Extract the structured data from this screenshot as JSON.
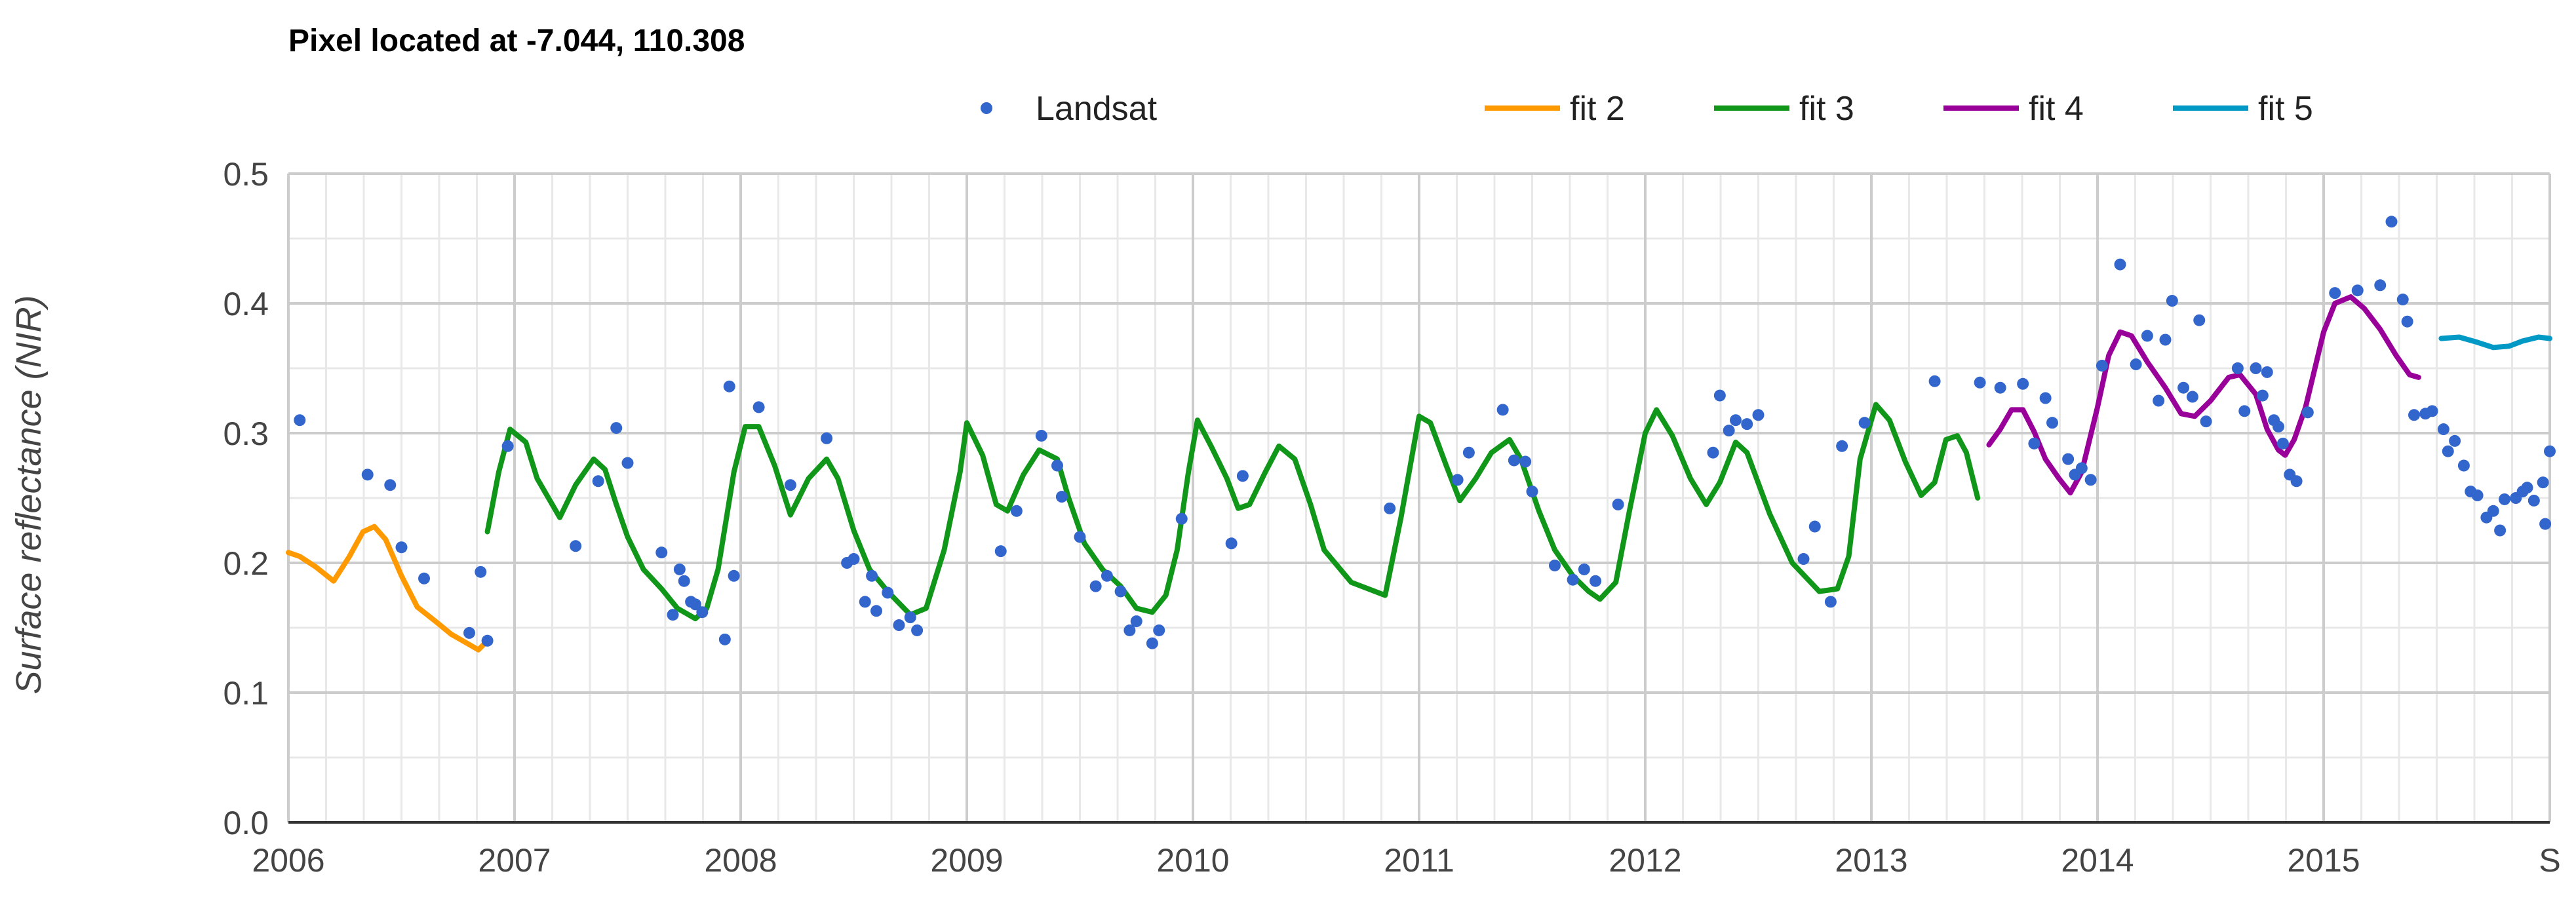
{
  "chart_data": {
    "type": "line",
    "title": "Pixel located at -7.044, 110.308",
    "xlabel": "",
    "ylabel": "Surface reflectance (NIR)",
    "x_tick_labels": [
      "2006",
      "2007",
      "2008",
      "2009",
      "2010",
      "2011",
      "2012",
      "2013",
      "2014",
      "2015",
      "S"
    ],
    "y_tick_labels": [
      "0.0",
      "0.1",
      "0.2",
      "0.3",
      "0.4",
      "0.5"
    ],
    "ylim": [
      0,
      0.5
    ],
    "xlim": [
      2006,
      2016.0
    ],
    "grid": true,
    "legend_position": "top",
    "colors": {
      "Landsat": "#3366cc",
      "fit 2": "#ff9900",
      "fit 3": "#109618",
      "fit 4": "#990099",
      "fit 5": "#0099c6"
    },
    "series": [
      {
        "name": "Landsat",
        "kind": "scatter",
        "points": [
          [
            2006.05,
            0.31
          ],
          [
            2006.35,
            0.268
          ],
          [
            2006.45,
            0.26
          ],
          [
            2006.5,
            0.212
          ],
          [
            2006.6,
            0.188
          ],
          [
            2006.8,
            0.146
          ],
          [
            2006.85,
            0.193
          ],
          [
            2006.88,
            0.14
          ],
          [
            2006.97,
            0.29
          ],
          [
            2007.27,
            0.213
          ],
          [
            2007.37,
            0.263
          ],
          [
            2007.45,
            0.304
          ],
          [
            2007.5,
            0.277
          ],
          [
            2007.65,
            0.208
          ],
          [
            2007.7,
            0.16
          ],
          [
            2007.73,
            0.195
          ],
          [
            2007.75,
            0.186
          ],
          [
            2007.78,
            0.17
          ],
          [
            2007.8,
            0.168
          ],
          [
            2007.83,
            0.162
          ],
          [
            2007.93,
            0.141
          ],
          [
            2007.97,
            0.19
          ],
          [
            2007.95,
            0.336
          ],
          [
            2008.08,
            0.32
          ],
          [
            2008.22,
            0.26
          ],
          [
            2008.38,
            0.296
          ],
          [
            2008.47,
            0.2
          ],
          [
            2008.5,
            0.203
          ],
          [
            2008.55,
            0.17
          ],
          [
            2008.58,
            0.19
          ],
          [
            2008.6,
            0.163
          ],
          [
            2008.65,
            0.177
          ],
          [
            2008.7,
            0.152
          ],
          [
            2008.75,
            0.158
          ],
          [
            2008.78,
            0.148
          ],
          [
            2009.15,
            0.209
          ],
          [
            2009.22,
            0.24
          ],
          [
            2009.33,
            0.298
          ],
          [
            2009.4,
            0.275
          ],
          [
            2009.42,
            0.251
          ],
          [
            2009.5,
            0.22
          ],
          [
            2009.57,
            0.182
          ],
          [
            2009.62,
            0.19
          ],
          [
            2009.68,
            0.178
          ],
          [
            2009.72,
            0.148
          ],
          [
            2009.75,
            0.155
          ],
          [
            2009.82,
            0.138
          ],
          [
            2009.85,
            0.148
          ],
          [
            2009.95,
            0.234
          ],
          [
            2010.17,
            0.215
          ],
          [
            2010.22,
            0.267
          ],
          [
            2010.87,
            0.242
          ],
          [
            2011.17,
            0.264
          ],
          [
            2011.22,
            0.285
          ],
          [
            2011.37,
            0.318
          ],
          [
            2011.42,
            0.279
          ],
          [
            2011.47,
            0.278
          ],
          [
            2011.5,
            0.255
          ],
          [
            2011.6,
            0.198
          ],
          [
            2011.68,
            0.187
          ],
          [
            2011.73,
            0.195
          ],
          [
            2011.78,
            0.186
          ],
          [
            2011.88,
            0.245
          ],
          [
            2012.3,
            0.285
          ],
          [
            2012.33,
            0.329
          ],
          [
            2012.37,
            0.302
          ],
          [
            2012.4,
            0.31
          ],
          [
            2012.45,
            0.307
          ],
          [
            2012.5,
            0.314
          ],
          [
            2012.7,
            0.203
          ],
          [
            2012.75,
            0.228
          ],
          [
            2012.82,
            0.17
          ],
          [
            2012.87,
            0.29
          ],
          [
            2012.97,
            0.308
          ],
          [
            2013.28,
            0.34
          ],
          [
            2013.48,
            0.339
          ],
          [
            2013.57,
            0.335
          ],
          [
            2013.67,
            0.338
          ],
          [
            2013.72,
            0.292
          ],
          [
            2013.77,
            0.327
          ],
          [
            2013.8,
            0.308
          ],
          [
            2013.87,
            0.28
          ],
          [
            2013.9,
            0.268
          ],
          [
            2013.93,
            0.273
          ],
          [
            2013.97,
            0.264
          ],
          [
            2014.02,
            0.352
          ],
          [
            2014.1,
            0.43
          ],
          [
            2014.17,
            0.353
          ],
          [
            2014.22,
            0.375
          ],
          [
            2014.27,
            0.325
          ],
          [
            2014.3,
            0.372
          ],
          [
            2014.33,
            0.402
          ],
          [
            2014.38,
            0.335
          ],
          [
            2014.42,
            0.328
          ],
          [
            2014.45,
            0.387
          ],
          [
            2014.48,
            0.309
          ],
          [
            2014.62,
            0.35
          ],
          [
            2014.65,
            0.317
          ],
          [
            2014.7,
            0.35
          ],
          [
            2014.73,
            0.329
          ],
          [
            2014.75,
            0.347
          ],
          [
            2014.78,
            0.31
          ],
          [
            2014.8,
            0.305
          ],
          [
            2014.82,
            0.292
          ],
          [
            2014.85,
            0.268
          ],
          [
            2014.88,
            0.263
          ],
          [
            2014.93,
            0.316
          ],
          [
            2015.05,
            0.408
          ],
          [
            2015.15,
            0.41
          ],
          [
            2015.25,
            0.414
          ],
          [
            2015.3,
            0.463
          ],
          [
            2015.35,
            0.403
          ],
          [
            2015.37,
            0.386
          ],
          [
            2015.4,
            0.314
          ],
          [
            2015.45,
            0.315
          ],
          [
            2015.48,
            0.317
          ],
          [
            2015.53,
            0.303
          ],
          [
            2015.55,
            0.286
          ],
          [
            2015.58,
            0.294
          ],
          [
            2015.62,
            0.275
          ],
          [
            2015.65,
            0.255
          ],
          [
            2015.68,
            0.252
          ],
          [
            2015.72,
            0.235
          ],
          [
            2015.75,
            0.24
          ],
          [
            2015.78,
            0.225
          ],
          [
            2015.8,
            0.249
          ],
          [
            2015.85,
            0.25
          ],
          [
            2015.88,
            0.255
          ],
          [
            2015.9,
            0.258
          ],
          [
            2015.93,
            0.248
          ],
          [
            2015.97,
            0.262
          ],
          [
            2015.98,
            0.23
          ],
          [
            2016.0,
            0.286
          ]
        ]
      },
      {
        "name": "fit 2",
        "kind": "line",
        "points": [
          [
            2006.0,
            0.208
          ],
          [
            2006.05,
            0.205
          ],
          [
            2006.12,
            0.197
          ],
          [
            2006.2,
            0.186
          ],
          [
            2006.27,
            0.205
          ],
          [
            2006.33,
            0.224
          ],
          [
            2006.38,
            0.228
          ],
          [
            2006.43,
            0.218
          ],
          [
            2006.5,
            0.19
          ],
          [
            2006.57,
            0.166
          ],
          [
            2006.65,
            0.155
          ],
          [
            2006.72,
            0.145
          ],
          [
            2006.8,
            0.137
          ],
          [
            2006.84,
            0.133
          ],
          [
            2006.88,
            0.14
          ]
        ]
      },
      {
        "name": "fit 3",
        "kind": "line",
        "points": [
          [
            2006.88,
            0.224
          ],
          [
            2006.93,
            0.27
          ],
          [
            2006.98,
            0.303
          ],
          [
            2007.05,
            0.293
          ],
          [
            2007.1,
            0.265
          ],
          [
            2007.2,
            0.235
          ],
          [
            2007.27,
            0.26
          ],
          [
            2007.35,
            0.28
          ],
          [
            2007.4,
            0.272
          ],
          [
            2007.45,
            0.245
          ],
          [
            2007.5,
            0.22
          ],
          [
            2007.57,
            0.195
          ],
          [
            2007.65,
            0.18
          ],
          [
            2007.72,
            0.165
          ],
          [
            2007.8,
            0.157
          ],
          [
            2007.85,
            0.165
          ],
          [
            2007.9,
            0.195
          ],
          [
            2007.97,
            0.27
          ],
          [
            2008.02,
            0.305
          ],
          [
            2008.08,
            0.305
          ],
          [
            2008.15,
            0.275
          ],
          [
            2008.22,
            0.237
          ],
          [
            2008.3,
            0.265
          ],
          [
            2008.38,
            0.28
          ],
          [
            2008.43,
            0.265
          ],
          [
            2008.5,
            0.225
          ],
          [
            2008.57,
            0.195
          ],
          [
            2008.65,
            0.178
          ],
          [
            2008.75,
            0.16
          ],
          [
            2008.82,
            0.165
          ],
          [
            2008.9,
            0.21
          ],
          [
            2008.97,
            0.27
          ],
          [
            2009.0,
            0.308
          ],
          [
            2009.07,
            0.283
          ],
          [
            2009.13,
            0.245
          ],
          [
            2009.18,
            0.24
          ],
          [
            2009.25,
            0.268
          ],
          [
            2009.32,
            0.287
          ],
          [
            2009.4,
            0.28
          ],
          [
            2009.45,
            0.25
          ],
          [
            2009.52,
            0.215
          ],
          [
            2009.6,
            0.195
          ],
          [
            2009.68,
            0.182
          ],
          [
            2009.75,
            0.165
          ],
          [
            2009.82,
            0.162
          ],
          [
            2009.88,
            0.175
          ],
          [
            2009.93,
            0.21
          ],
          [
            2009.98,
            0.27
          ],
          [
            2010.02,
            0.31
          ],
          [
            2010.08,
            0.29
          ],
          [
            2010.15,
            0.265
          ],
          [
            2010.2,
            0.242
          ],
          [
            2010.25,
            0.245
          ],
          [
            2010.32,
            0.27
          ],
          [
            2010.38,
            0.29
          ],
          [
            2010.45,
            0.28
          ],
          [
            2010.52,
            0.245
          ],
          [
            2010.58,
            0.21
          ],
          [
            2010.7,
            0.185
          ],
          [
            2010.85,
            0.175
          ],
          [
            2010.92,
            0.235
          ],
          [
            2011.0,
            0.313
          ],
          [
            2011.05,
            0.308
          ],
          [
            2011.12,
            0.275
          ],
          [
            2011.18,
            0.248
          ],
          [
            2011.25,
            0.265
          ],
          [
            2011.32,
            0.285
          ],
          [
            2011.4,
            0.295
          ],
          [
            2011.45,
            0.28
          ],
          [
            2011.53,
            0.24
          ],
          [
            2011.6,
            0.21
          ],
          [
            2011.68,
            0.19
          ],
          [
            2011.75,
            0.178
          ],
          [
            2011.8,
            0.172
          ],
          [
            2011.87,
            0.185
          ],
          [
            2011.93,
            0.24
          ],
          [
            2012.0,
            0.3
          ],
          [
            2012.05,
            0.318
          ],
          [
            2012.12,
            0.298
          ],
          [
            2012.2,
            0.265
          ],
          [
            2012.27,
            0.245
          ],
          [
            2012.33,
            0.262
          ],
          [
            2012.4,
            0.293
          ],
          [
            2012.45,
            0.285
          ],
          [
            2012.55,
            0.238
          ],
          [
            2012.65,
            0.2
          ],
          [
            2012.77,
            0.178
          ],
          [
            2012.85,
            0.18
          ],
          [
            2012.9,
            0.205
          ],
          [
            2012.95,
            0.28
          ],
          [
            2013.02,
            0.322
          ],
          [
            2013.08,
            0.31
          ],
          [
            2013.15,
            0.278
          ],
          [
            2013.22,
            0.252
          ],
          [
            2013.28,
            0.262
          ],
          [
            2013.33,
            0.295
          ],
          [
            2013.38,
            0.298
          ],
          [
            2013.42,
            0.285
          ],
          [
            2013.47,
            0.25
          ]
        ]
      },
      {
        "name": "fit 4",
        "kind": "line",
        "points": [
          [
            2013.52,
            0.291
          ],
          [
            2013.57,
            0.303
          ],
          [
            2013.62,
            0.318
          ],
          [
            2013.67,
            0.318
          ],
          [
            2013.72,
            0.301
          ],
          [
            2013.77,
            0.28
          ],
          [
            2013.83,
            0.265
          ],
          [
            2013.88,
            0.254
          ],
          [
            2013.93,
            0.27
          ],
          [
            2014.0,
            0.32
          ],
          [
            2014.05,
            0.36
          ],
          [
            2014.1,
            0.378
          ],
          [
            2014.15,
            0.375
          ],
          [
            2014.22,
            0.355
          ],
          [
            2014.3,
            0.335
          ],
          [
            2014.37,
            0.315
          ],
          [
            2014.43,
            0.313
          ],
          [
            2014.5,
            0.325
          ],
          [
            2014.58,
            0.343
          ],
          [
            2014.63,
            0.345
          ],
          [
            2014.7,
            0.33
          ],
          [
            2014.75,
            0.303
          ],
          [
            2014.8,
            0.287
          ],
          [
            2014.83,
            0.283
          ],
          [
            2014.87,
            0.295
          ],
          [
            2014.92,
            0.32
          ],
          [
            2015.0,
            0.378
          ],
          [
            2015.05,
            0.4
          ],
          [
            2015.12,
            0.405
          ],
          [
            2015.18,
            0.396
          ],
          [
            2015.25,
            0.38
          ],
          [
            2015.32,
            0.36
          ],
          [
            2015.38,
            0.345
          ],
          [
            2015.42,
            0.343
          ]
        ]
      },
      {
        "name": "fit 5",
        "kind": "line",
        "points": [
          [
            2015.52,
            0.373
          ],
          [
            2015.6,
            0.374
          ],
          [
            2015.68,
            0.37
          ],
          [
            2015.75,
            0.366
          ],
          [
            2015.82,
            0.367
          ],
          [
            2015.88,
            0.371
          ],
          [
            2015.95,
            0.374
          ],
          [
            2016.0,
            0.373
          ]
        ]
      }
    ]
  }
}
